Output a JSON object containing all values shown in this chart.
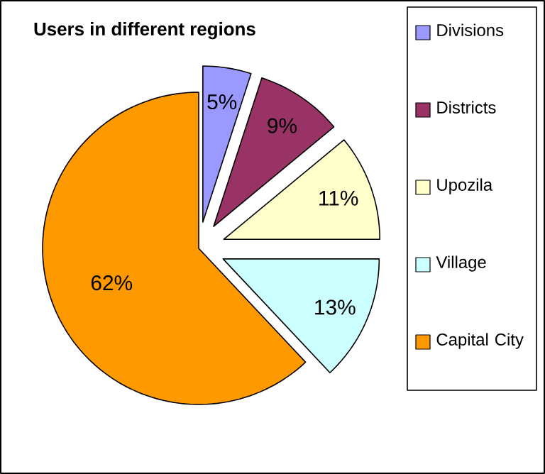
{
  "chart_data": {
    "type": "pie",
    "title": "Users in different regions",
    "categories": [
      "Divisions",
      "Districts",
      "Upozila",
      "Village",
      "Capital City"
    ],
    "values": [
      5,
      9,
      11,
      13,
      62
    ],
    "colors": [
      "#9999ff",
      "#993366",
      "#ffffcc",
      "#ccffff",
      "#ff9900"
    ],
    "value_labels": [
      "5%",
      "9%",
      "11%",
      "13%",
      "62%"
    ],
    "legend": "right"
  }
}
